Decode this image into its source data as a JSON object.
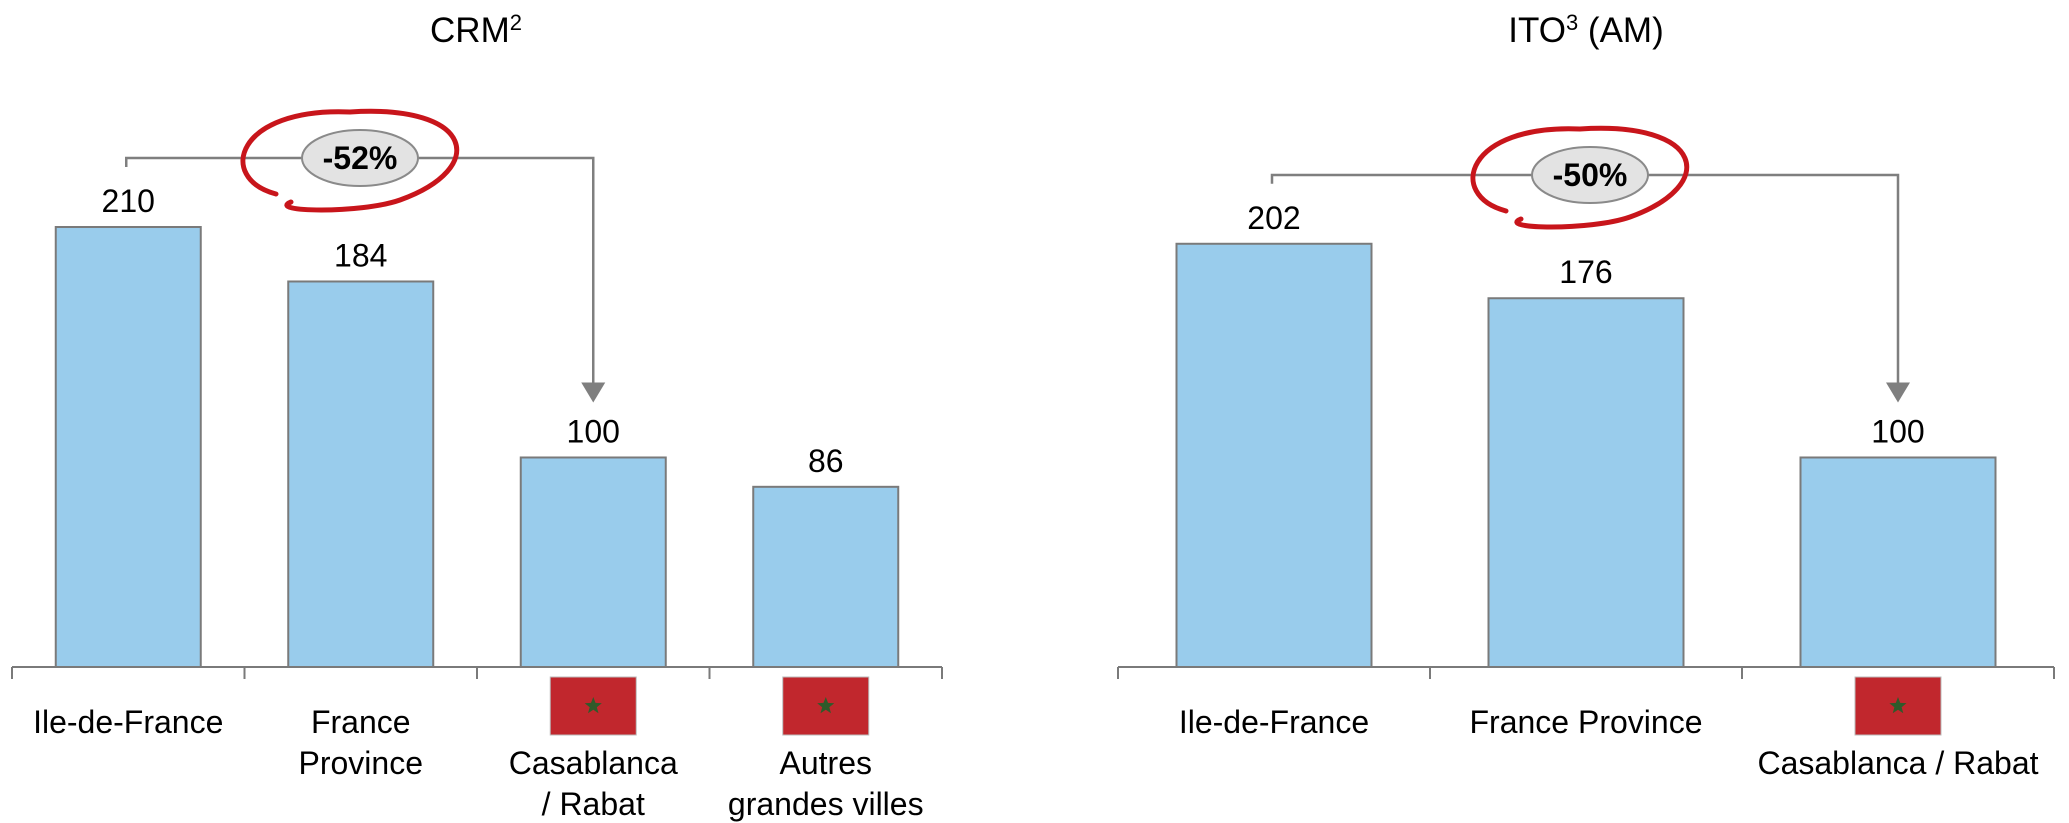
{
  "colors": {
    "bar": "#99CCEC",
    "bar_stroke": "#7a7a7a",
    "axis": "#7a7a7a",
    "connector": "#7f7f7f",
    "callout_fill": "#e3e3e3",
    "circle_red": "#c8151b",
    "flag_red": "#c1272d",
    "flag_star": "#2f5a2a"
  },
  "chart_data": [
    {
      "type": "bar",
      "title": "CRM",
      "title_sup": "2",
      "categories": [
        [
          "Ile-de-France"
        ],
        [
          "France",
          "Province"
        ],
        [
          "Casablanca",
          "/ Rabat"
        ],
        [
          "Autres",
          "grandes villes"
        ]
      ],
      "values": [
        210,
        184,
        100,
        86
      ],
      "flags": [
        false,
        false,
        true,
        true
      ],
      "callout": {
        "label": "-52%",
        "from_index": 0,
        "to_index": 2
      },
      "ylim": [
        0,
        210
      ],
      "grid": false,
      "legend": "none"
    },
    {
      "type": "bar",
      "title": "ITO",
      "title_sup": "3",
      "title_suffix": " (AM)",
      "categories": [
        [
          "Ile-de-France"
        ],
        [
          "France Province"
        ],
        [
          "Casablanca / Rabat"
        ]
      ],
      "values": [
        202,
        176,
        100
      ],
      "flags": [
        false,
        false,
        true
      ],
      "callout": {
        "label": "-50%",
        "from_index": 0,
        "to_index": 2
      },
      "ylim": [
        0,
        210
      ],
      "grid": false,
      "legend": "none"
    }
  ]
}
